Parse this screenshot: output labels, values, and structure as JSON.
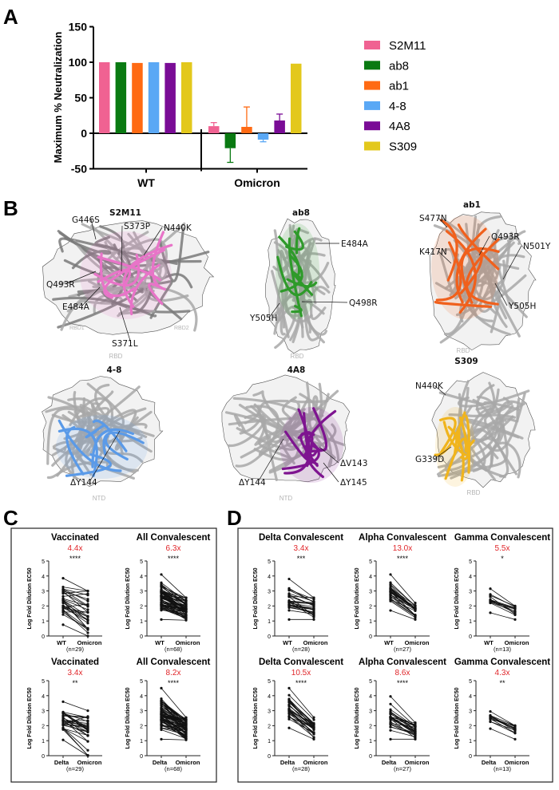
{
  "panel_labels": {
    "a": "A",
    "b": "B",
    "c": "C",
    "d": "D"
  },
  "chart_data": [
    {
      "type": "bar",
      "panel": "A",
      "ylabel": "Maximum % Neutralization",
      "ylim": [
        -50,
        150
      ],
      "yticks": [
        "150",
        "100",
        "50",
        "0",
        "-50"
      ],
      "ytick_values": [
        150,
        100,
        50,
        0,
        -50
      ],
      "categories": [
        "WT",
        "Omicron"
      ],
      "legend_position": "right",
      "series": [
        {
          "name": "S2M11",
          "color": "#f06292",
          "values": [
            100,
            10
          ],
          "error_to": [
            100,
            15
          ]
        },
        {
          "name": "ab8",
          "color": "#0a7a12",
          "values": [
            100,
            -21
          ],
          "error_to": [
            100,
            -41
          ]
        },
        {
          "name": "ab1",
          "color": "#ff6a13",
          "values": [
            99,
            9
          ],
          "error_to": [
            100,
            37
          ]
        },
        {
          "name": "4-8",
          "color": "#5aa8f5",
          "values": [
            100,
            -9
          ],
          "error_to": [
            100,
            -12
          ]
        },
        {
          "name": "4A8",
          "color": "#7a0c96",
          "values": [
            99,
            18
          ],
          "error_to": [
            100,
            27
          ]
        },
        {
          "name": "S309",
          "color": "#e3c81c",
          "values": [
            100,
            98
          ],
          "error_to": [
            100,
            98
          ]
        }
      ]
    },
    {
      "type": "line",
      "panel": "C",
      "ylabel": "Log Fold Dilution EC50",
      "ylim": [
        0,
        5
      ],
      "yticks": [
        "0",
        "1",
        "2",
        "3",
        "4",
        "5"
      ],
      "plots": [
        {
          "title": "Vaccinated",
          "fold": "4.4x",
          "stars": "****",
          "x": [
            "WT",
            "Omicron"
          ],
          "n": "(n=29)",
          "count": 29,
          "first_range": [
            0.75,
            3.85
          ],
          "second_range": [
            0,
            3.0
          ],
          "seed": 3
        },
        {
          "title": "All Convalescent",
          "fold": "6.3x",
          "stars": "****",
          "x": [
            "WT",
            "Omicron"
          ],
          "n": "(n=68)",
          "count": 68,
          "first_range": [
            1.1,
            4.1
          ],
          "second_range": [
            1.05,
            2.55
          ],
          "seed": 7
        },
        {
          "title": "Vaccinated",
          "fold": "3.4x",
          "stars": "**",
          "x": [
            "Delta",
            "Omicron"
          ],
          "n": "(n=29)",
          "count": 29,
          "first_range": [
            1.05,
            3.6
          ],
          "second_range": [
            0,
            3.0
          ],
          "seed": 11
        },
        {
          "title": "All Convalescent",
          "fold": "8.2x",
          "stars": "****",
          "x": [
            "Delta",
            "Omicron"
          ],
          "n": "(n=68)",
          "count": 68,
          "first_range": [
            1.1,
            4.5
          ],
          "second_range": [
            1.05,
            2.55
          ],
          "seed": 13
        }
      ]
    },
    {
      "type": "line",
      "panel": "D",
      "ylabel": "Log Fold Dilution EC50",
      "ylim": [
        0,
        5
      ],
      "yticks": [
        "0",
        "1",
        "2",
        "3",
        "4",
        "5"
      ],
      "plots": [
        {
          "title": "Delta Convalescent",
          "fold": "3.4x",
          "stars": "***",
          "x": [
            "WT",
            "Omicron"
          ],
          "n": "(n=28)",
          "count": 28,
          "first_range": [
            1.1,
            3.8
          ],
          "second_range": [
            1.1,
            2.55
          ],
          "seed": 17
        },
        {
          "title": "Alpha Convalescent",
          "fold": "13.0x",
          "stars": "****",
          "x": [
            "WT",
            "Omicron"
          ],
          "n": "(n=27)",
          "count": 27,
          "first_range": [
            1.7,
            4.1
          ],
          "second_range": [
            1.1,
            2.2
          ],
          "seed": 19
        },
        {
          "title": "Gamma Convalescent",
          "fold": "5.5x",
          "stars": "*",
          "x": [
            "WT",
            "Omicron"
          ],
          "n": "(n=13)",
          "count": 13,
          "first_range": [
            1.55,
            3.15
          ],
          "second_range": [
            1.1,
            2.0
          ],
          "seed": 23
        },
        {
          "title": "Delta Convalescent",
          "fold": "10.5x",
          "stars": "****",
          "x": [
            "Delta",
            "Omicron"
          ],
          "n": "(n=28)",
          "count": 28,
          "first_range": [
            1.85,
            4.5
          ],
          "second_range": [
            1.1,
            2.55
          ],
          "seed": 29
        },
        {
          "title": "Alpha Convalescent",
          "fold": "8.6x",
          "stars": "****",
          "x": [
            "Delta",
            "Omicron"
          ],
          "n": "(n=27)",
          "count": 27,
          "first_range": [
            1.1,
            3.95
          ],
          "second_range": [
            1.1,
            2.2
          ],
          "seed": 31
        },
        {
          "title": "Gamma Convalescent",
          "fold": "4.3x",
          "stars": "**",
          "x": [
            "Delta",
            "Omicron"
          ],
          "n": "(n=13)",
          "count": 13,
          "first_range": [
            1.8,
            2.95
          ],
          "second_range": [
            1.1,
            2.0
          ],
          "seed": 37
        }
      ]
    }
  ],
  "structures": [
    {
      "title": "S2M11",
      "color": "#e874c8",
      "domain": "RBD",
      "sublabels": [
        "RBD1",
        "RBD2"
      ],
      "mutations": [
        "G446S",
        "S373P",
        "N440K",
        "Q493R",
        "E484A",
        "S371L"
      ]
    },
    {
      "title": "ab8",
      "color": "#2e9a2a",
      "domain": "RBD",
      "mutations": [
        "E484A",
        "Q498R",
        "Y505H"
      ]
    },
    {
      "title": "ab1",
      "color": "#f0601c",
      "domain": "RBD",
      "mutations": [
        "S477N",
        "Q493R",
        "N501Y",
        "K417N",
        "Y505H"
      ]
    },
    {
      "title": "4-8",
      "color": "#5a9ae8",
      "domain": "NTD",
      "mutations": [
        "ΔY144"
      ]
    },
    {
      "title": "4A8",
      "color": "#7e1490",
      "domain": "NTD",
      "mutations": [
        "ΔY144",
        "ΔV143",
        "ΔY145"
      ]
    },
    {
      "title": "S309",
      "color": "#f0b41c",
      "domain": "RBD",
      "mutations": [
        "N440K",
        "G339D"
      ]
    }
  ]
}
